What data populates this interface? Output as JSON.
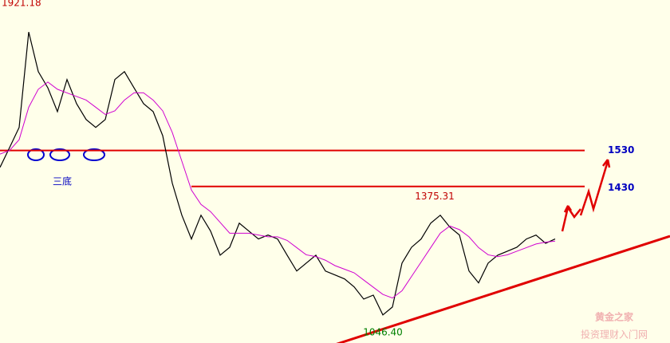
{
  "chart_data": {
    "type": "line",
    "ylim": [
      995,
      1948
    ],
    "series": [
      {
        "name": "price",
        "color": "#000000",
        "values": [
          1483,
          1538,
          1594,
          1859,
          1749,
          1704,
          1638,
          1727,
          1660,
          1616,
          1594,
          1616,
          1727,
          1749,
          1704,
          1660,
          1638,
          1571,
          1439,
          1350,
          1284,
          1350,
          1306,
          1239,
          1261,
          1328,
          1306,
          1284,
          1295,
          1284,
          1239,
          1195,
          1217,
          1239,
          1195,
          1184,
          1173,
          1151,
          1117,
          1128,
          1073,
          1095,
          1217,
          1261,
          1284,
          1328,
          1350,
          1317,
          1295,
          1195,
          1162,
          1217,
          1239,
          1250,
          1261,
          1284,
          1295,
          1272,
          1284
        ]
      },
      {
        "name": "ma",
        "color": "#d000d0",
        "values": [
          1520,
          1530,
          1560,
          1650,
          1700,
          1720,
          1700,
          1690,
          1680,
          1670,
          1650,
          1630,
          1640,
          1670,
          1690,
          1690,
          1670,
          1640,
          1580,
          1500,
          1420,
          1380,
          1360,
          1330,
          1300,
          1300,
          1300,
          1295,
          1290,
          1290,
          1280,
          1260,
          1240,
          1235,
          1225,
          1210,
          1200,
          1190,
          1170,
          1150,
          1130,
          1120,
          1140,
          1180,
          1220,
          1260,
          1300,
          1320,
          1310,
          1290,
          1260,
          1240,
          1235,
          1240,
          1250,
          1260,
          1270,
          1275,
          1278
        ]
      }
    ],
    "extremes": [
      {
        "value": 1921.18,
        "label": "1921.18"
      },
      {
        "value": 1375.31,
        "label": "1375.31"
      },
      {
        "value": 1046.4,
        "label": "1046.40"
      }
    ],
    "levels": [
      1530,
      1430
    ],
    "annotation": "三底",
    "watermark": {
      "title": "黄金之家",
      "subtitle": "投资理财入门网"
    }
  }
}
